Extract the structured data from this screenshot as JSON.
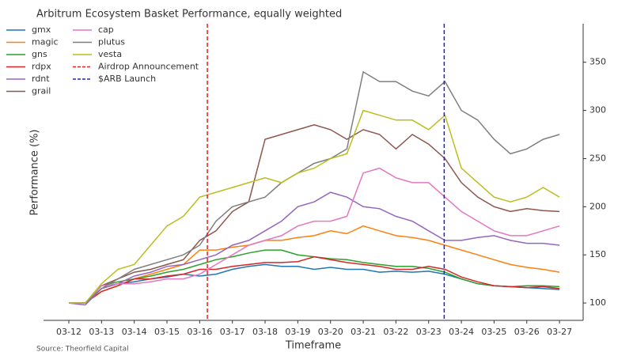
{
  "chart_data": {
    "type": "line",
    "title": "Arbitrum Ecosystem Basket Performance, equally weighted",
    "x_label": "Timeframe",
    "y_label": "Performance (%)",
    "source": "Source: Theorfield Capital",
    "categories": [
      "03-12",
      null,
      "03-13",
      null,
      "03-14",
      null,
      "03-15",
      null,
      "03-16",
      null,
      "03-17",
      null,
      "03-18",
      null,
      "03-19",
      null,
      "03-20",
      null,
      "03-21",
      null,
      "03-22",
      null,
      "03-23",
      null,
      "03-24",
      null,
      "03-25",
      null,
      "03-26",
      null,
      "03-27"
    ],
    "series": [
      {
        "name": "gmx",
        "color": "#1f77b4",
        "values": [
          100,
          100,
          115,
          120,
          122,
          125,
          127,
          130,
          128,
          130,
          135,
          138,
          140,
          138,
          138,
          135,
          137,
          135,
          135,
          132,
          133,
          132,
          133,
          130,
          125,
          120,
          118,
          117,
          116,
          115,
          114
        ]
      },
      {
        "name": "magic",
        "color": "#ff7f0e",
        "values": [
          100,
          100,
          112,
          118,
          125,
          130,
          135,
          140,
          155,
          155,
          158,
          160,
          165,
          165,
          168,
          170,
          175,
          172,
          180,
          175,
          170,
          168,
          165,
          160,
          155,
          150,
          145,
          140,
          137,
          135,
          132
        ]
      },
      {
        "name": "gns",
        "color": "#2ca02c",
        "values": [
          100,
          100,
          118,
          122,
          125,
          128,
          132,
          135,
          140,
          145,
          148,
          152,
          155,
          155,
          150,
          148,
          146,
          145,
          142,
          140,
          138,
          138,
          136,
          132,
          125,
          120,
          118,
          117,
          118,
          118,
          117
        ]
      },
      {
        "name": "rdpx",
        "color": "#d62728",
        "values": [
          100,
          100,
          112,
          118,
          125,
          125,
          128,
          130,
          135,
          135,
          138,
          140,
          142,
          142,
          143,
          148,
          145,
          142,
          140,
          138,
          135,
          135,
          138,
          135,
          127,
          122,
          118,
          117,
          116,
          117,
          115
        ]
      },
      {
        "name": "rdnt",
        "color": "#9467bd",
        "values": [
          100,
          98,
          115,
          120,
          128,
          132,
          138,
          140,
          145,
          150,
          160,
          165,
          175,
          185,
          200,
          205,
          215,
          210,
          200,
          198,
          190,
          185,
          175,
          165,
          165,
          168,
          170,
          165,
          162,
          162,
          160
        ]
      },
      {
        "name": "grail",
        "color": "#8c564b",
        "values": [
          100,
          100,
          118,
          125,
          132,
          135,
          140,
          145,
          165,
          175,
          195,
          205,
          270,
          275,
          280,
          285,
          280,
          270,
          280,
          275,
          260,
          275,
          265,
          250,
          225,
          210,
          200,
          195,
          198,
          196,
          195
        ]
      },
      {
        "name": "cap",
        "color": "#e377c2",
        "values": [
          100,
          100,
          118,
          120,
          120,
          122,
          125,
          125,
          130,
          140,
          150,
          160,
          165,
          170,
          180,
          185,
          185,
          190,
          235,
          240,
          230,
          225,
          225,
          210,
          195,
          185,
          175,
          170,
          170,
          175,
          180
        ]
      },
      {
        "name": "plutus",
        "color": "#7f7f7f",
        "values": [
          100,
          100,
          115,
          125,
          135,
          140,
          145,
          150,
          160,
          185,
          200,
          205,
          210,
          225,
          235,
          245,
          250,
          260,
          340,
          330,
          330,
          320,
          315,
          330,
          300,
          290,
          270,
          255,
          260,
          270,
          275
        ]
      },
      {
        "name": "vesta",
        "color": "#bcbd22",
        "values": [
          100,
          100,
          120,
          135,
          140,
          160,
          180,
          190,
          210,
          215,
          220,
          225,
          230,
          225,
          235,
          240,
          250,
          255,
          300,
          295,
          290,
          290,
          280,
          295,
          240,
          225,
          210,
          205,
          210,
          220,
          210
        ]
      }
    ],
    "vlines": [
      {
        "name": "Airdrop Announcement",
        "color": "#d62728",
        "x": 8.47
      },
      {
        "name": "$ARB Launch",
        "color": "#2222cc",
        "x": 22.95
      }
    ],
    "ylim": [
      82,
      390
    ],
    "yticks": [
      100,
      150,
      200,
      250,
      300,
      350
    ],
    "y_axis_side": "right"
  }
}
